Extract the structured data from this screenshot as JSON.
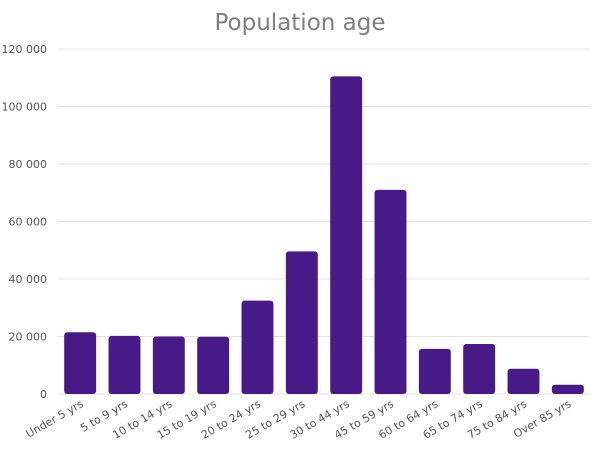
{
  "chart_data": {
    "type": "bar",
    "title": "Population age",
    "xlabel": "",
    "ylabel": "",
    "categories": [
      "Under 5 yrs",
      "5 to 9 yrs",
      "10 to 14 yrs",
      "15 to 19 yrs",
      "20 to 24 yrs",
      "25 to 29 yrs",
      "30 to 44 yrs",
      "45 to 59 yrs",
      "60 to 64 yrs",
      "65 to 74 yrs",
      "75 to 84 yrs",
      "Over 85 yrs"
    ],
    "values": [
      21500,
      20200,
      20000,
      19900,
      32500,
      49600,
      110500,
      71000,
      15700,
      17400,
      8800,
      3200
    ],
    "ylim": [
      0,
      120000
    ],
    "yticks": [
      0,
      20000,
      40000,
      60000,
      80000,
      100000,
      120000
    ],
    "ytick_labels": [
      "0",
      "20 000",
      "40 000",
      "60 000",
      "80 000",
      "100 000",
      "120 000"
    ],
    "grid": true,
    "bar_color": "#471a87",
    "grid_color": "#e3e3e3"
  }
}
